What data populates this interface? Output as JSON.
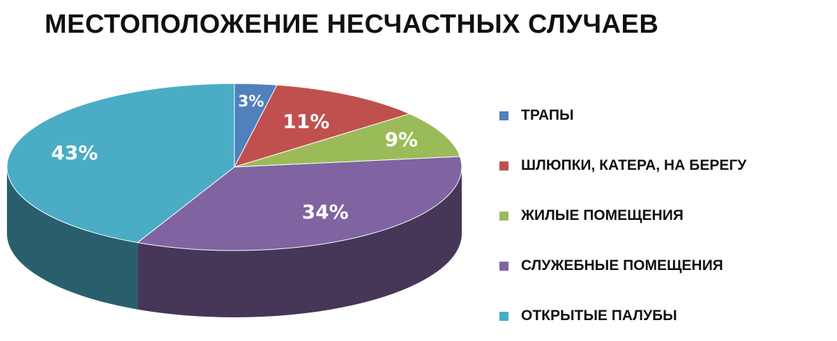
{
  "title": "МЕСТОПОЛОЖЕНИЕ НЕСЧАСТНЫХ СЛУЧАЕВ",
  "chart_data": {
    "type": "pie",
    "title": "МЕСТОПОЛОЖЕНИЕ НЕСЧАСТНЫХ СЛУЧАЕВ",
    "style": "3d",
    "legend_position": "right",
    "categories": [
      "ТРАПЫ",
      "ШЛЮПКИ, КАТЕРА, НА БЕРЕГУ",
      "ЖИЛЫЕ ПОМЕЩЕНИЯ",
      "СЛУЖЕБНЫЕ ПОМЕЩЕНИЯ",
      "ОТКРЫТЫЕ ПАЛУБЫ"
    ],
    "values": [
      3,
      11,
      9,
      34,
      43
    ],
    "labels": [
      "3%",
      "11%",
      "9%",
      "34%",
      "43%"
    ],
    "colors": [
      "#4f81bd",
      "#c0504d",
      "#9bbb59",
      "#8064a2",
      "#4bacc6"
    ]
  }
}
